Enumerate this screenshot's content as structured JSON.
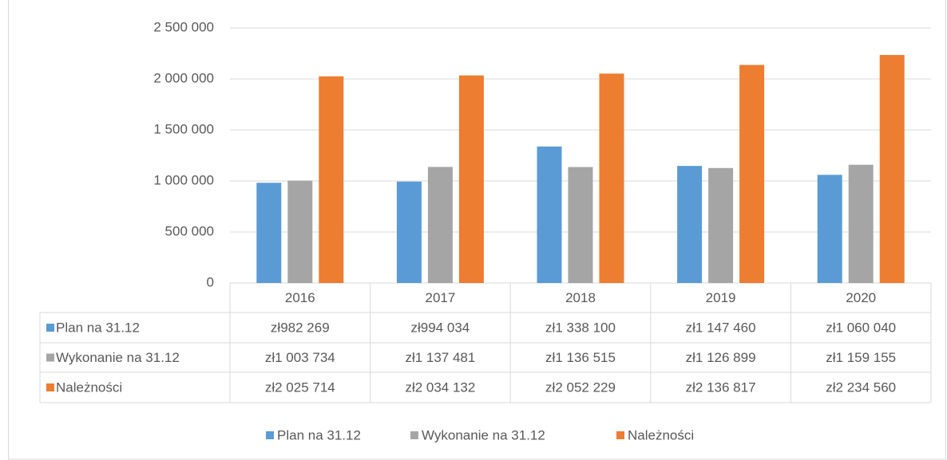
{
  "chart_data": {
    "type": "bar",
    "categories": [
      "2016",
      "2017",
      "2018",
      "2019",
      "2020"
    ],
    "series": [
      {
        "name": "Plan na 31.12",
        "color": "#5b9bd5",
        "values": [
          982269,
          994034,
          1338100,
          1147460,
          1060040
        ],
        "value_labels": [
          "zł982 269",
          "zł994 034",
          "zł1 338 100",
          "zł1 147 460",
          "zł1 060 040"
        ]
      },
      {
        "name": "Wykonanie na 31.12",
        "color": "#a5a5a5",
        "values": [
          1003734,
          1137481,
          1136515,
          1126899,
          1159155
        ],
        "value_labels": [
          "zł1 003 734",
          "zł1 137 481",
          "zł1 136 515",
          "zł1 126 899",
          "zł1 159 155"
        ]
      },
      {
        "name": "Należności",
        "color": "#ed7d31",
        "values": [
          2025714,
          2034132,
          2052229,
          2136817,
          2234560
        ],
        "value_labels": [
          "zł2 025 714",
          "zł2 034 132",
          "zł2 052 229",
          "zł2 136 817",
          "zł2 234 560"
        ]
      }
    ],
    "ylim": [
      0,
      2500000
    ],
    "yticks": [
      0,
      {
        "value": 500000,
        "label": "500 000"
      },
      {
        "value": 1000000,
        "label": "1 000 000"
      },
      {
        "value": 1500000,
        "label": "1 500 000"
      },
      {
        "value": 2000000,
        "label": "2 000 000"
      },
      {
        "value": 2500000,
        "label": "2 500 000"
      }
    ],
    "grid": true,
    "legend": "bottom"
  }
}
